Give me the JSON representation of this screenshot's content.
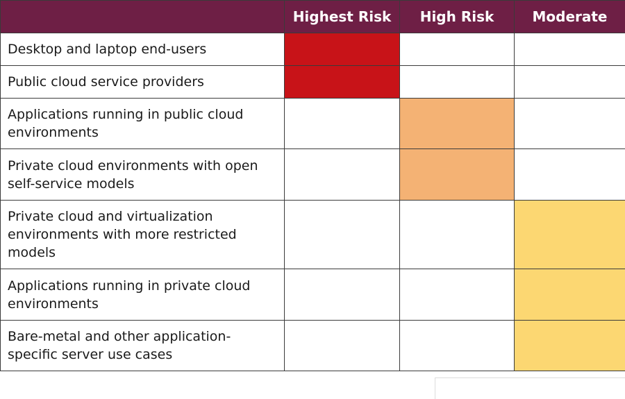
{
  "header": {
    "columns": [
      "Highest Risk",
      "High Risk",
      "Moderate"
    ]
  },
  "colors": {
    "header_bg": "#6e1f45",
    "highest": "#c81318",
    "high": "#f4b274",
    "moderate": "#fcd772",
    "none": "#ffffff"
  },
  "rows": [
    {
      "label": "Desktop and laptop end-users",
      "level": "highest"
    },
    {
      "label": "Public cloud service providers",
      "level": "highest"
    },
    {
      "label": "Applications running in public cloud environments",
      "level": "high"
    },
    {
      "label": "Private cloud environments with open self-service models",
      "level": "high"
    },
    {
      "label": "Private cloud and virtualization environments with more restricted models",
      "level": "moderate"
    },
    {
      "label": "Applications running in private cloud environments",
      "level": "moderate"
    },
    {
      "label": "Bare-metal and other application-specific server use cases",
      "level": "moderate"
    }
  ]
}
